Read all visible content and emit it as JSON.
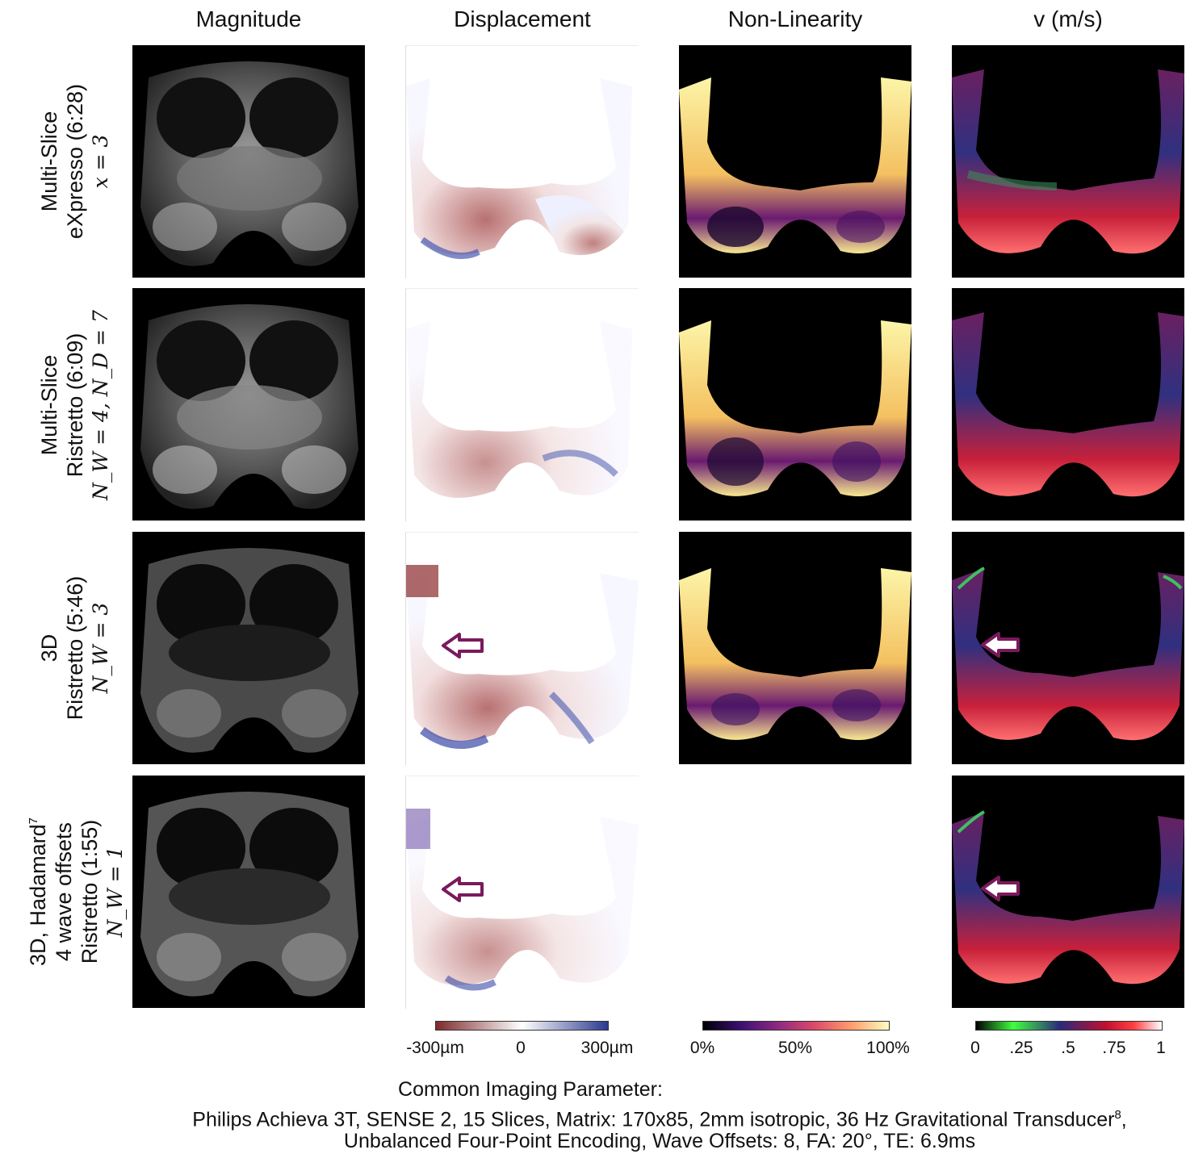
{
  "columns": [
    "Magnitude",
    "Displacement",
    "Non-Linearity",
    "v (m/s)"
  ],
  "rows": [
    {
      "line1": "Multi-Slice",
      "line2": "eXpresso (6:28)",
      "line3": "x = 3"
    },
    {
      "line1": "Multi-Slice",
      "line2": "Ristretto (6:09)",
      "line3": "N_W = 4, N_D = 7"
    },
    {
      "line1": "3D",
      "line2": "Ristretto  (5:46)",
      "line3": "N_W = 3"
    },
    {
      "line0": "3D, Hadamard",
      "line0_sup": "7",
      "line1": "4 wave offsets",
      "line2": "Ristretto  (1:55)",
      "line3": "N_W = 1"
    }
  ],
  "colorbars": {
    "displacement": {
      "ticks": [
        "-300µm",
        "0",
        "300µm"
      ],
      "colors": [
        "#7d2a2a",
        "#ffffff",
        "#2a3a8f"
      ]
    },
    "nonlinearity": {
      "ticks": [
        "0%",
        "50%",
        "100%"
      ],
      "colors": [
        "#000004",
        "#3b0f70",
        "#8c2981",
        "#de4968",
        "#fe9f6d",
        "#fcfdbf"
      ]
    },
    "velocity": {
      "ticks": [
        "0",
        ".25",
        ".5",
        ".75",
        "1"
      ],
      "colors": [
        "#000000",
        "#40ff40",
        "#2a2a7a",
        "#c01030",
        "#ff4040",
        "#ffffff"
      ]
    }
  },
  "caption": {
    "line1": "Common Imaging Parameter:",
    "line2": "Philips Achieva 3T, SENSE 2, 15 Slices, Matrix: 170x85, 2mm isotropic, 36 Hz Gravitational Transducer",
    "line2_sup": "8",
    "line2_end": ",",
    "line3": "Unbalanced Four-Point Encoding, Wave Offsets: 8, FA: 20°, TE: 6.9ms"
  },
  "palette": {
    "arrow": "#7a1a5c"
  }
}
